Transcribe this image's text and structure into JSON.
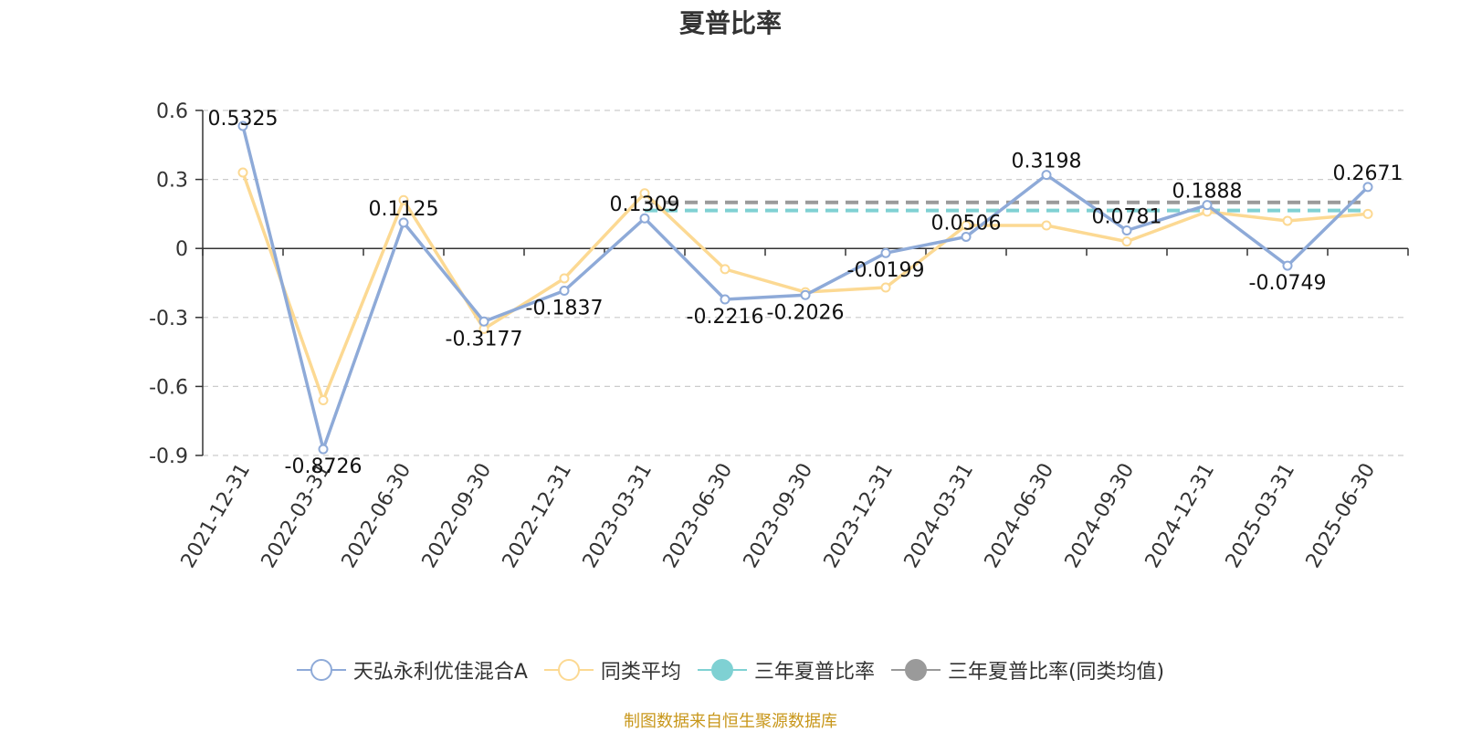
{
  "title": "夏普比率",
  "source_note": "制图数据来自恒生聚源数据库",
  "chart_data": {
    "type": "line",
    "title": "夏普比率",
    "categories": [
      "2021-12-31",
      "2022-03-31",
      "2022-06-30",
      "2022-09-30",
      "2022-12-31",
      "2023-03-31",
      "2023-06-30",
      "2023-09-30",
      "2023-12-31",
      "2024-03-31",
      "2024-06-30",
      "2024-09-30",
      "2024-12-31",
      "2025-03-31",
      "2025-06-30"
    ],
    "ylim": [
      -0.9,
      0.6
    ],
    "yticks": [
      0.6,
      0.3,
      0,
      -0.3,
      -0.6,
      -0.9
    ],
    "ytick_labels": [
      "0.6",
      "0.3",
      "0",
      "-0.3",
      "-0.6",
      "-0.9"
    ],
    "grid": true,
    "legend_position": "bottom",
    "series": [
      {
        "name": "天弘永利优佳混合A",
        "color": "#8eaad8",
        "values": [
          0.5325,
          -0.8726,
          0.1125,
          -0.3177,
          -0.1837,
          0.1309,
          -0.2216,
          -0.2026,
          -0.0199,
          0.0506,
          0.3198,
          0.0781,
          0.1888,
          -0.0749,
          0.2671
        ],
        "labels": [
          "0.5325",
          "-0.8726",
          "0.1125",
          "-0.3177",
          "-0.1837",
          "0.1309",
          "-0.2216",
          "-0.2026",
          "-0.0199",
          "0.0506",
          "0.3198",
          "0.0781",
          "0.1888",
          "-0.0749",
          "0.2671"
        ]
      },
      {
        "name": "同类平均",
        "color": "#fcd993",
        "values": [
          0.33,
          -0.66,
          0.21,
          -0.35,
          -0.13,
          0.24,
          -0.09,
          -0.19,
          -0.17,
          0.1,
          0.1,
          0.03,
          0.16,
          0.12,
          0.15
        ]
      },
      {
        "name": "三年夏普比率",
        "color": "#7fd1d3",
        "dashed": true,
        "x_start": "2023-03-31",
        "value": 0.165
      },
      {
        "name": "三年夏普比率(同类均值)",
        "color": "#9a9a9a",
        "dashed": true,
        "x_start": "2023-03-31",
        "value": 0.2
      }
    ]
  }
}
